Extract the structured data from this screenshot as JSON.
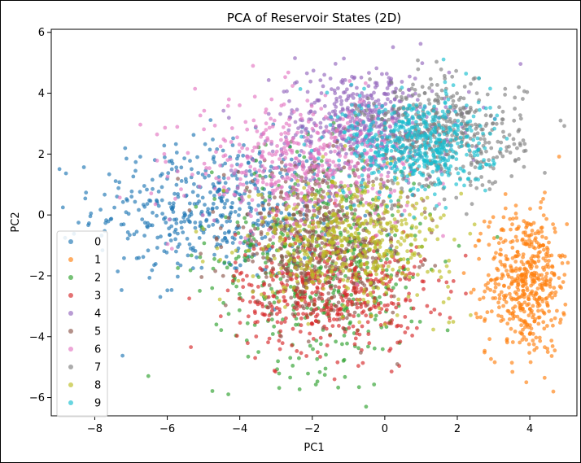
{
  "chart_data": {
    "type": "scatter",
    "title": "PCA of Reservoir States (2D)",
    "xlabel": "PC1",
    "ylabel": "PC2",
    "xlim": [
      -9.2,
      5.3
    ],
    "ylim": [
      -6.6,
      6.1
    ],
    "xticks": [
      -8,
      -6,
      -4,
      -2,
      0,
      2,
      4
    ],
    "yticks": [
      -6,
      -4,
      -2,
      0,
      2,
      4,
      6
    ],
    "grid": false,
    "legend_position": "lower-left",
    "marker_alpha": 0.65,
    "series": [
      {
        "name": "0",
        "color": "#1f77b4",
        "center": [
          -4.6,
          0.2
        ],
        "spread": [
          1.7,
          1.15
        ],
        "n": 500
      },
      {
        "name": "1",
        "color": "#ff7f0e",
        "center": [
          3.9,
          -2.2
        ],
        "spread": [
          0.55,
          1.2
        ],
        "n": 500
      },
      {
        "name": "2",
        "color": "#2ca02c",
        "center": [
          -1.7,
          -1.5
        ],
        "spread": [
          1.5,
          1.8
        ],
        "n": 500
      },
      {
        "name": "3",
        "color": "#d62728",
        "center": [
          -1.5,
          -2.5
        ],
        "spread": [
          1.3,
          1.0
        ],
        "n": 500
      },
      {
        "name": "4",
        "color": "#9467bd",
        "center": [
          -0.6,
          3.0
        ],
        "spread": [
          1.2,
          0.9
        ],
        "n": 500
      },
      {
        "name": "5",
        "color": "#8c564b",
        "center": [
          -1.8,
          -0.8
        ],
        "spread": [
          1.3,
          1.2
        ],
        "n": 500
      },
      {
        "name": "6",
        "color": "#e377c2",
        "center": [
          -2.3,
          1.6
        ],
        "spread": [
          1.5,
          1.1
        ],
        "n": 500
      },
      {
        "name": "7",
        "color": "#7f7f7f",
        "center": [
          1.6,
          2.6
        ],
        "spread": [
          1.1,
          0.9
        ],
        "n": 500
      },
      {
        "name": "8",
        "color": "#bcbd22",
        "center": [
          -0.9,
          -0.8
        ],
        "spread": [
          1.4,
          1.0
        ],
        "n": 500
      },
      {
        "name": "9",
        "color": "#17becf",
        "center": [
          0.9,
          2.3
        ],
        "spread": [
          1.0,
          0.85
        ],
        "n": 500
      }
    ]
  }
}
